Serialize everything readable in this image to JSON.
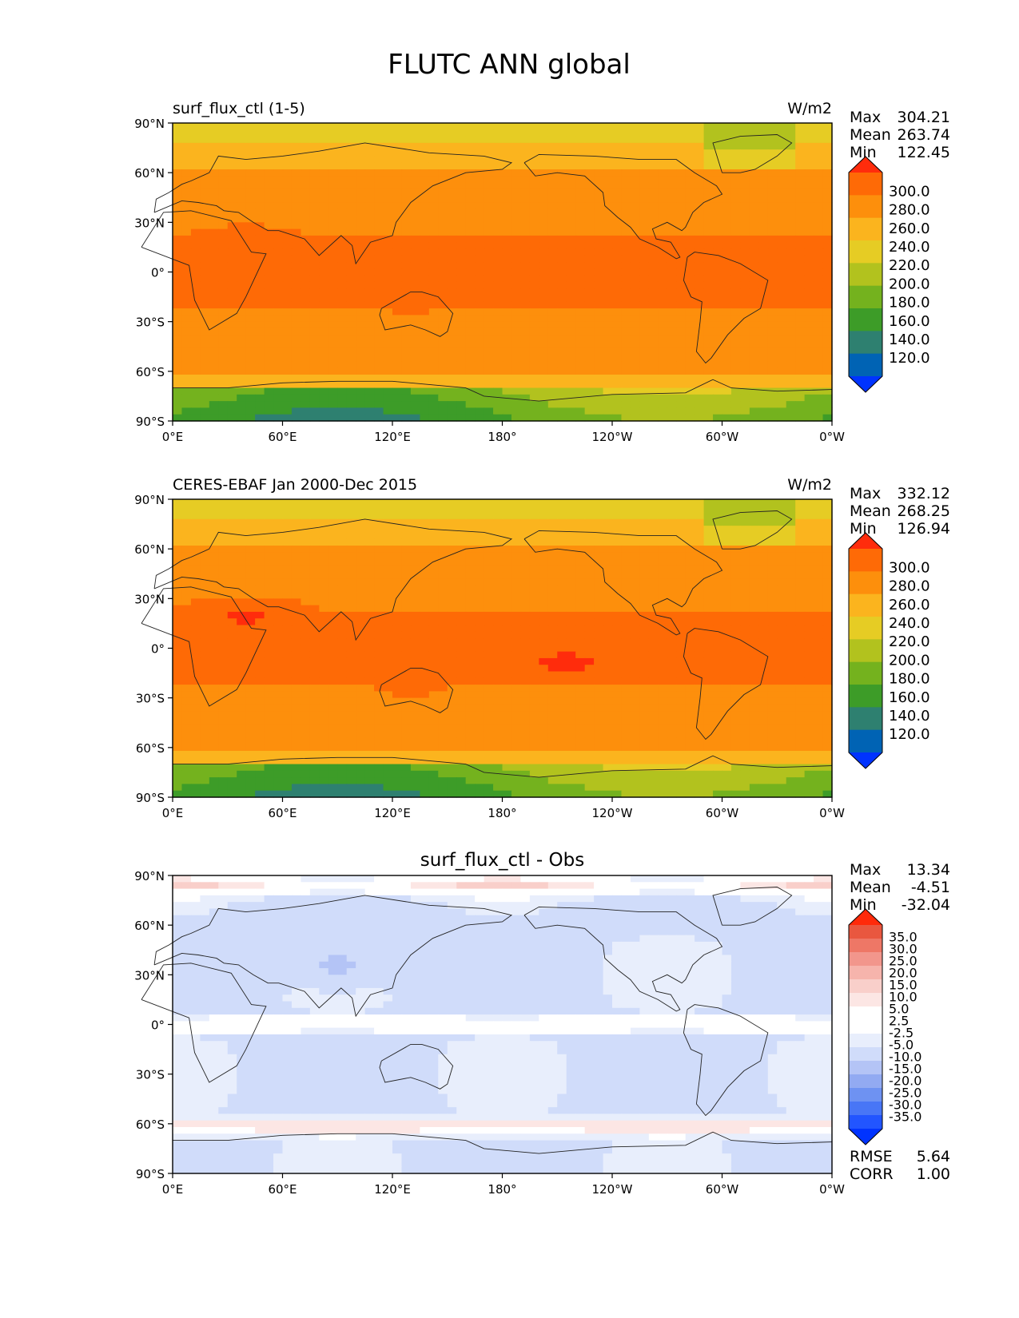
{
  "title": "FLUTC ANN global",
  "lat_ticks": [
    "90°N",
    "60°N",
    "30°N",
    "0°",
    "30°S",
    "60°S",
    "90°S"
  ],
  "lon_ticks": [
    "0°E",
    "60°E",
    "120°E",
    "180°",
    "120°W",
    "60°W",
    "0°W"
  ],
  "colors": {
    "abs_levels": [
      "#0033ff",
      "#0063b4",
      "#2e8070",
      "#3d9c28",
      "#74b21e",
      "#b2c21e",
      "#e6cc24",
      "#fbb41e",
      "#fd8f0c",
      "#fe6a06",
      "#ff2c0c"
    ],
    "diff_levels": [
      "#0033ff",
      "#2255ff",
      "#4876f6",
      "#6e92f2",
      "#92aaf2",
      "#b4c4f6",
      "#d0dcfa",
      "#e8eefc",
      "#ffffff",
      "#ffffff",
      "#fce6e4",
      "#f9cfca",
      "#f6b4ac",
      "#f2968c",
      "#ee7766",
      "#e9573f",
      "#ff2a0a"
    ]
  },
  "panels": [
    {
      "left_title": "surf_flux_ctl (1-5)",
      "right_title": "W/m2",
      "center_title": "",
      "stats": [
        {
          "label": "Max",
          "value": "304.21"
        },
        {
          "label": "Mean",
          "value": "263.74"
        },
        {
          "label": "Min",
          "value": "122.45"
        }
      ],
      "colorbar_labels": [
        "300.0",
        "280.0",
        "260.0",
        "240.0",
        "220.0",
        "200.0",
        "180.0",
        "160.0",
        "140.0",
        "120.0"
      ],
      "extra_stats": []
    },
    {
      "left_title": "CERES-EBAF Jan 2000-Dec 2015",
      "right_title": "W/m2",
      "center_title": "",
      "stats": [
        {
          "label": "Max",
          "value": "332.12"
        },
        {
          "label": "Mean",
          "value": "268.25"
        },
        {
          "label": "Min",
          "value": "126.94"
        }
      ],
      "colorbar_labels": [
        "300.0",
        "280.0",
        "260.0",
        "240.0",
        "220.0",
        "200.0",
        "180.0",
        "160.0",
        "140.0",
        "120.0"
      ],
      "extra_stats": []
    },
    {
      "left_title": "",
      "right_title": "",
      "center_title": "surf_flux_ctl - Obs",
      "stats": [
        {
          "label": "Max",
          "value": "13.34"
        },
        {
          "label": "Mean",
          "value": "-4.51"
        },
        {
          "label": "Min",
          "value": "-32.04"
        }
      ],
      "colorbar_labels": [
        "35.0",
        "30.0",
        "25.0",
        "20.0",
        "15.0",
        "10.0",
        "5.0",
        "2.5",
        "-2.5",
        "-5.0",
        "-10.0",
        "-15.0",
        "-20.0",
        "-25.0",
        "-30.0",
        "-35.0"
      ],
      "extra_stats": [
        {
          "label": "RMSE",
          "value": "5.64"
        },
        {
          "label": "CORR",
          "value": "1.00"
        }
      ]
    }
  ]
}
